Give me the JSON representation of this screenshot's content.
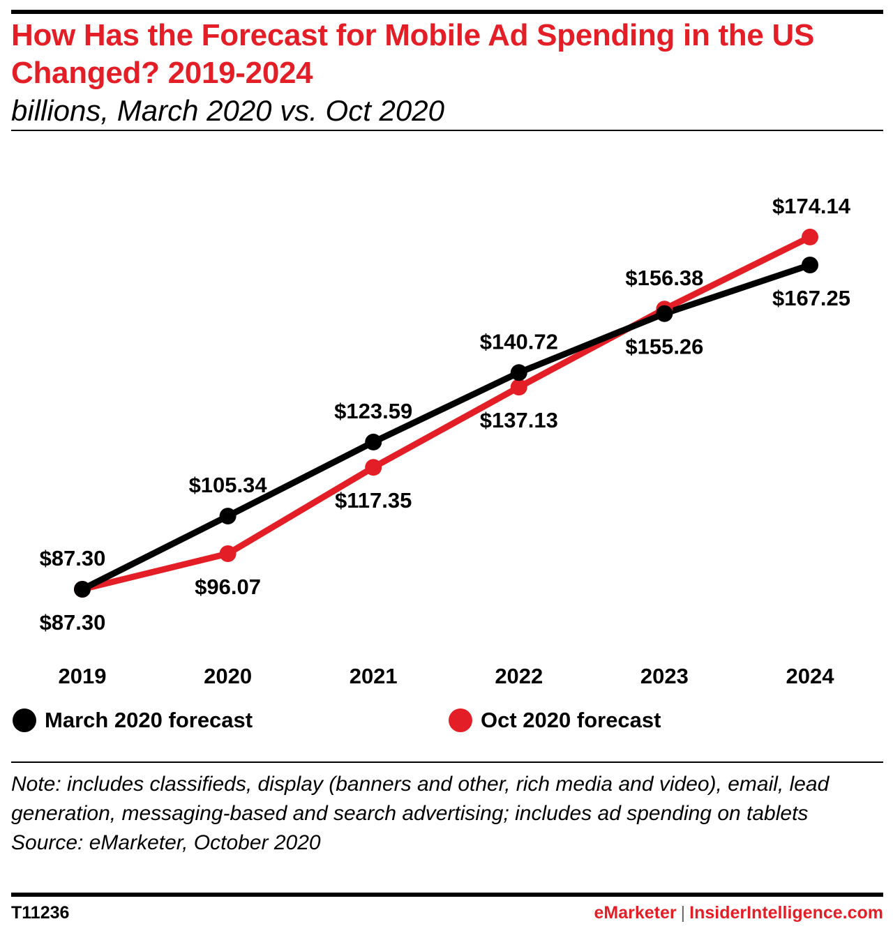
{
  "header": {
    "title": "How Has the Forecast for Mobile Ad Spending in the US Changed? 2019-2024",
    "subtitle": "billions, March 2020 vs. Oct 2020"
  },
  "chart_data": {
    "type": "line",
    "title": "How Has the Forecast for Mobile Ad Spending in the US Changed? 2019-2024",
    "subtitle": "billions, March 2020 vs. Oct 2020",
    "categories": [
      "2019",
      "2020",
      "2021",
      "2022",
      "2023",
      "2024"
    ],
    "series": [
      {
        "name": "March 2020 forecast",
        "color": "#000000",
        "values": [
          87.3,
          105.34,
          123.59,
          140.72,
          155.26,
          167.25
        ],
        "labels": [
          "$87.30",
          "$105.34",
          "$123.59",
          "$140.72",
          "$155.26",
          "$167.25"
        ]
      },
      {
        "name": "Oct 2020 forecast",
        "color": "#e41e26",
        "values": [
          87.3,
          96.07,
          117.35,
          137.13,
          156.38,
          174.14
        ],
        "labels": [
          "$87.30",
          "$96.07",
          "$117.35",
          "$137.13",
          "$156.38",
          "$174.14"
        ]
      }
    ],
    "grid": false,
    "legend_position": "bottom"
  },
  "legend": {
    "march_label": "March 2020 forecast",
    "oct_label": "Oct 2020 forecast"
  },
  "footer": {
    "note": "Note: includes classifieds, display (banners and other, rich media and video), email, lead generation, messaging-based and search advertising; includes ad spending on tablets",
    "source": "Source: eMarketer, October 2020",
    "code": "T11236",
    "brand_emarketer": "eMarketer",
    "brand_separator": "|",
    "brand_insider": "InsiderIntelligence.com"
  }
}
